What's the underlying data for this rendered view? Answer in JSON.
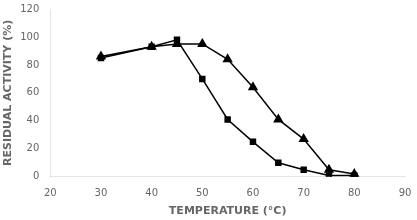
{
  "chart_data": {
    "type": "line",
    "xlabel": "TEMPERATURE (°C)",
    "ylabel": "RESIDUAL ACTIVITY (%)",
    "x": [
      30,
      40,
      45,
      50,
      55,
      60,
      65,
      70,
      75,
      80
    ],
    "series": [
      {
        "values": [
          85,
          93,
          98,
          70,
          41,
          25,
          10,
          5,
          1,
          1
        ],
        "color": "#000000",
        "marker": "square"
      },
      {
        "values": [
          86,
          93,
          95,
          95,
          84,
          64,
          41,
          27,
          5,
          2
        ],
        "color": "#000000",
        "marker": "triangle"
      }
    ],
    "xlim": [
      20,
      90
    ],
    "ylim": [
      0,
      120
    ],
    "xticks": [
      20,
      30,
      40,
      50,
      60,
      70,
      80,
      90
    ],
    "yticks": [
      0,
      20,
      40,
      60,
      80,
      100,
      120
    ],
    "grid": false
  }
}
